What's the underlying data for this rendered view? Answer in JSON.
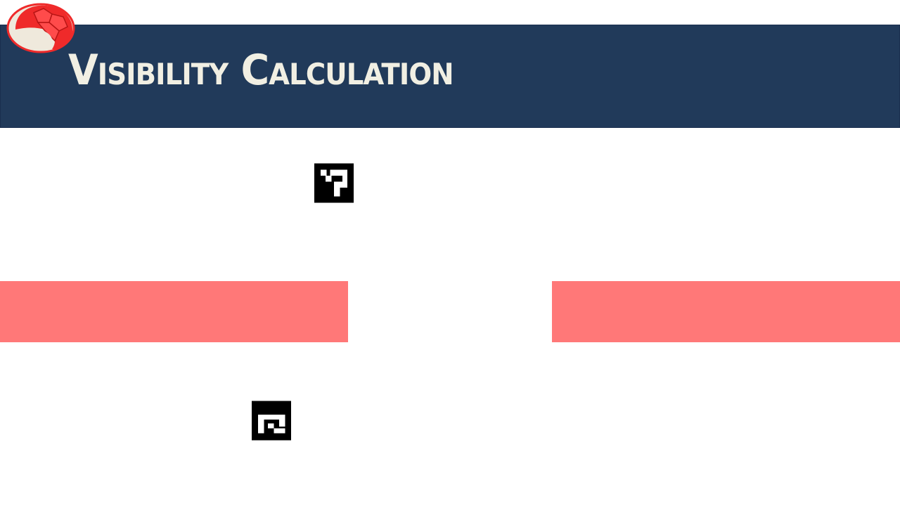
{
  "slide": {
    "title": "Visibility Calculation",
    "colors": {
      "title_band": "#213a5a",
      "title_text": "#f1efe3",
      "barrier": "#ff7878",
      "logo_red": "#ef2a2a",
      "logo_cream": "#efe9dc",
      "marker": "#000000"
    },
    "logo_icon": "turtle-shell-icon",
    "markers": [
      {
        "name": "fiducial-marker-top",
        "icon": "aruco-marker-icon"
      },
      {
        "name": "fiducial-marker-bottom",
        "icon": "aruco-marker-icon"
      }
    ],
    "barriers": [
      {
        "name": "barrier-left"
      },
      {
        "name": "barrier-right"
      }
    ]
  }
}
